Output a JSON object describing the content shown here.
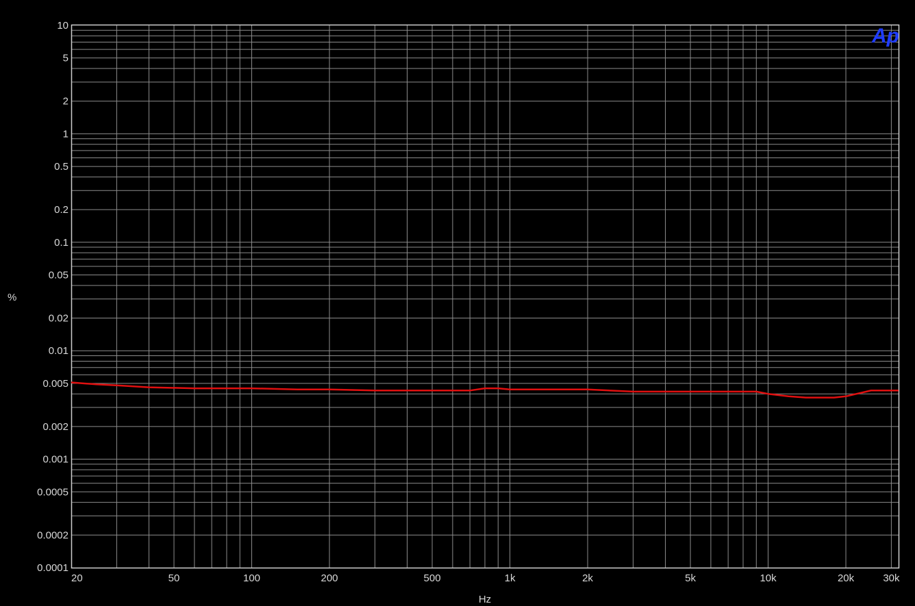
{
  "logo_text": "Ap",
  "chart_data": {
    "type": "line",
    "xlabel": "Hz",
    "ylabel": "%",
    "xscale": "log",
    "yscale": "log",
    "xlim": [
      20,
      32000
    ],
    "ylim": [
      0.0001,
      10
    ],
    "grid": true,
    "x_ticks": [
      {
        "value": 20,
        "label": "20"
      },
      {
        "value": 50,
        "label": "50"
      },
      {
        "value": 100,
        "label": "100"
      },
      {
        "value": 200,
        "label": "200"
      },
      {
        "value": 500,
        "label": "500"
      },
      {
        "value": 1000,
        "label": "1k"
      },
      {
        "value": 2000,
        "label": "2k"
      },
      {
        "value": 5000,
        "label": "5k"
      },
      {
        "value": 10000,
        "label": "10k"
      },
      {
        "value": 20000,
        "label": "20k"
      },
      {
        "value": 30000,
        "label": "30k"
      }
    ],
    "y_ticks": [
      {
        "value": 10,
        "label": "10"
      },
      {
        "value": 5,
        "label": "5"
      },
      {
        "value": 2,
        "label": "2"
      },
      {
        "value": 1,
        "label": "1"
      },
      {
        "value": 0.5,
        "label": "0.5"
      },
      {
        "value": 0.2,
        "label": "0.2"
      },
      {
        "value": 0.1,
        "label": "0.1"
      },
      {
        "value": 0.05,
        "label": "0.05"
      },
      {
        "value": 0.02,
        "label": "0.02"
      },
      {
        "value": 0.01,
        "label": "0.01"
      },
      {
        "value": 0.005,
        "label": "0.005"
      },
      {
        "value": 0.002,
        "label": "0.002"
      },
      {
        "value": 0.001,
        "label": "0.001"
      },
      {
        "value": 0.0005,
        "label": "0.0005"
      },
      {
        "value": 0.0002,
        "label": "0.0002"
      },
      {
        "value": 0.0001,
        "label": "0.0001"
      }
    ],
    "series": [
      {
        "color": "#e01010",
        "x": [
          20,
          25,
          30,
          40,
          60,
          100,
          150,
          200,
          300,
          500,
          700,
          800,
          900,
          1000,
          2000,
          3000,
          5000,
          8000,
          9000,
          10000,
          12000,
          14000,
          16000,
          18000,
          20000,
          22000,
          25000,
          30000,
          32000
        ],
        "y": [
          0.0051,
          0.0049,
          0.0048,
          0.0046,
          0.0045,
          0.0045,
          0.0044,
          0.0044,
          0.0043,
          0.0043,
          0.0043,
          0.0045,
          0.0045,
          0.0044,
          0.0044,
          0.0042,
          0.0042,
          0.0042,
          0.0042,
          0.004,
          0.0038,
          0.0037,
          0.0037,
          0.0037,
          0.0038,
          0.004,
          0.0043,
          0.0043,
          0.0043
        ]
      }
    ]
  }
}
